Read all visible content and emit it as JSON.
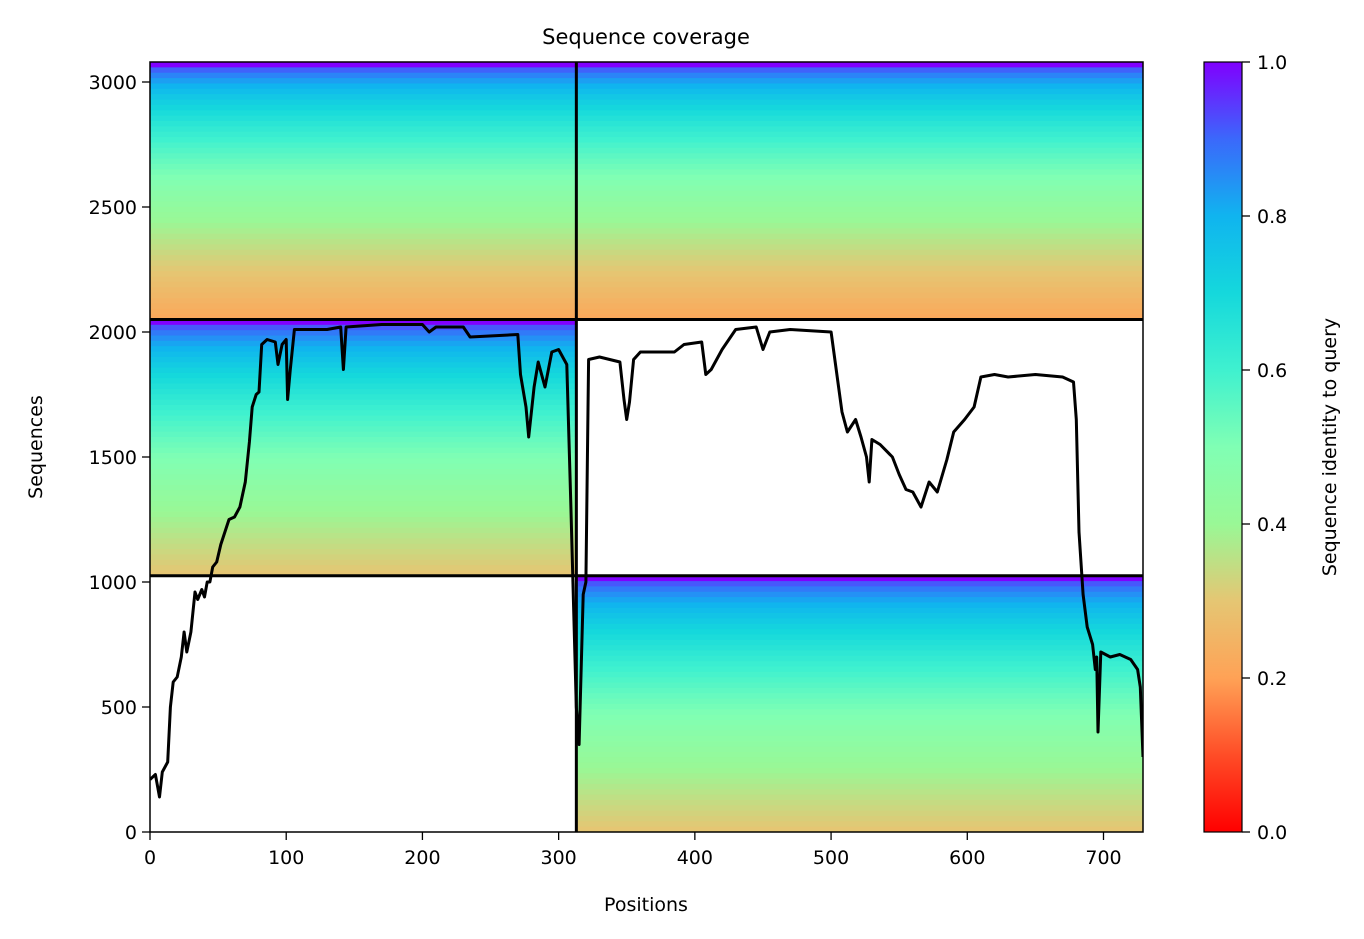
{
  "chart_data": {
    "type": "heatmap",
    "title": "Sequence coverage",
    "xlabel": "Positions",
    "ylabel": "Sequences",
    "xlim": [
      0,
      729
    ],
    "ylim": [
      0,
      3080
    ],
    "x_ticks": [
      0,
      100,
      200,
      300,
      400,
      500,
      600,
      700
    ],
    "y_ticks": [
      0,
      500,
      1000,
      1500,
      2000,
      2500,
      3000
    ],
    "grid": false,
    "colormap": "rainbow_r",
    "colorbar": {
      "label": "Sequence identity to query",
      "min": 0.0,
      "max": 1.0,
      "ticks": [
        0.0,
        0.2,
        0.4,
        0.6,
        0.8,
        1.0
      ],
      "tick_labels": [
        "0.0",
        "0.2",
        "0.4",
        "0.6",
        "0.8",
        "1.0"
      ]
    },
    "block_boundaries": {
      "x": [
        0,
        313,
        729
      ],
      "y": [
        0,
        1025,
        2050,
        3080
      ]
    },
    "blocks": [
      {
        "x_range": [
          0,
          313
        ],
        "y_range": [
          2050,
          3080
        ],
        "identity_top": 1.0,
        "identity_bottom": 0.22
      },
      {
        "x_range": [
          313,
          729
        ],
        "y_range": [
          2050,
          3080
        ],
        "identity_top": 1.0,
        "identity_bottom": 0.22
      },
      {
        "x_range": [
          0,
          313
        ],
        "y_range": [
          1025,
          2050
        ],
        "identity_top": 1.0,
        "identity_bottom": 0.3
      },
      {
        "x_range": [
          313,
          729
        ],
        "y_range": [
          0,
          1025
        ],
        "identity_top": 1.0,
        "identity_bottom": 0.3
      }
    ],
    "series": [
      {
        "type": "line",
        "color": "#000000",
        "points": [
          [
            0,
            210
          ],
          [
            4,
            230
          ],
          [
            7,
            140
          ],
          [
            9,
            240
          ],
          [
            13,
            280
          ],
          [
            15,
            500
          ],
          [
            17,
            600
          ],
          [
            20,
            620
          ],
          [
            23,
            700
          ],
          [
            25,
            800
          ],
          [
            27,
            720
          ],
          [
            30,
            800
          ],
          [
            33,
            960
          ],
          [
            35,
            930
          ],
          [
            38,
            970
          ],
          [
            40,
            940
          ],
          [
            42,
            1000
          ],
          [
            44,
            1000
          ],
          [
            46,
            1060
          ],
          [
            49,
            1080
          ],
          [
            52,
            1150
          ],
          [
            55,
            1200
          ],
          [
            58,
            1250
          ],
          [
            62,
            1260
          ],
          [
            66,
            1300
          ],
          [
            70,
            1400
          ],
          [
            73,
            1560
          ],
          [
            75,
            1700
          ],
          [
            78,
            1750
          ],
          [
            80,
            1760
          ],
          [
            82,
            1950
          ],
          [
            86,
            1970
          ],
          [
            92,
            1960
          ],
          [
            94,
            1870
          ],
          [
            97,
            1950
          ],
          [
            100,
            1970
          ],
          [
            101,
            1730
          ],
          [
            103,
            1850
          ],
          [
            106,
            2010
          ],
          [
            130,
            2010
          ],
          [
            140,
            2020
          ],
          [
            142,
            1850
          ],
          [
            144,
            2020
          ],
          [
            170,
            2030
          ],
          [
            200,
            2030
          ],
          [
            205,
            2000
          ],
          [
            210,
            2020
          ],
          [
            230,
            2020
          ],
          [
            235,
            1980
          ],
          [
            270,
            1990
          ],
          [
            272,
            1830
          ],
          [
            276,
            1700
          ],
          [
            278,
            1580
          ],
          [
            282,
            1780
          ],
          [
            285,
            1880
          ],
          [
            290,
            1780
          ],
          [
            295,
            1920
          ],
          [
            300,
            1930
          ],
          [
            306,
            1870
          ],
          [
            309,
            1300
          ],
          [
            311,
            900
          ],
          [
            313,
            500
          ],
          [
            315,
            350
          ],
          [
            318,
            950
          ],
          [
            320,
            1000
          ],
          [
            322,
            1890
          ],
          [
            330,
            1900
          ],
          [
            345,
            1880
          ],
          [
            348,
            1730
          ],
          [
            350,
            1650
          ],
          [
            352,
            1720
          ],
          [
            355,
            1890
          ],
          [
            360,
            1920
          ],
          [
            385,
            1920
          ],
          [
            392,
            1950
          ],
          [
            405,
            1960
          ],
          [
            408,
            1830
          ],
          [
            412,
            1850
          ],
          [
            420,
            1930
          ],
          [
            425,
            1970
          ],
          [
            430,
            2010
          ],
          [
            445,
            2020
          ],
          [
            450,
            1930
          ],
          [
            455,
            2000
          ],
          [
            470,
            2010
          ],
          [
            500,
            2000
          ],
          [
            505,
            1800
          ],
          [
            508,
            1680
          ],
          [
            512,
            1600
          ],
          [
            518,
            1650
          ],
          [
            522,
            1580
          ],
          [
            526,
            1500
          ],
          [
            528,
            1400
          ],
          [
            530,
            1570
          ],
          [
            536,
            1550
          ],
          [
            545,
            1500
          ],
          [
            550,
            1430
          ],
          [
            555,
            1370
          ],
          [
            560,
            1360
          ],
          [
            566,
            1300
          ],
          [
            572,
            1400
          ],
          [
            578,
            1360
          ],
          [
            585,
            1490
          ],
          [
            590,
            1600
          ],
          [
            598,
            1650
          ],
          [
            605,
            1700
          ],
          [
            610,
            1820
          ],
          [
            620,
            1830
          ],
          [
            630,
            1820
          ],
          [
            650,
            1830
          ],
          [
            670,
            1820
          ],
          [
            678,
            1800
          ],
          [
            680,
            1650
          ],
          [
            682,
            1200
          ],
          [
            685,
            950
          ],
          [
            688,
            820
          ],
          [
            692,
            750
          ],
          [
            694,
            650
          ],
          [
            695,
            700
          ],
          [
            696,
            400
          ],
          [
            698,
            720
          ],
          [
            705,
            700
          ],
          [
            712,
            710
          ],
          [
            720,
            690
          ],
          [
            725,
            650
          ],
          [
            727,
            580
          ],
          [
            729,
            300
          ]
        ]
      }
    ]
  }
}
